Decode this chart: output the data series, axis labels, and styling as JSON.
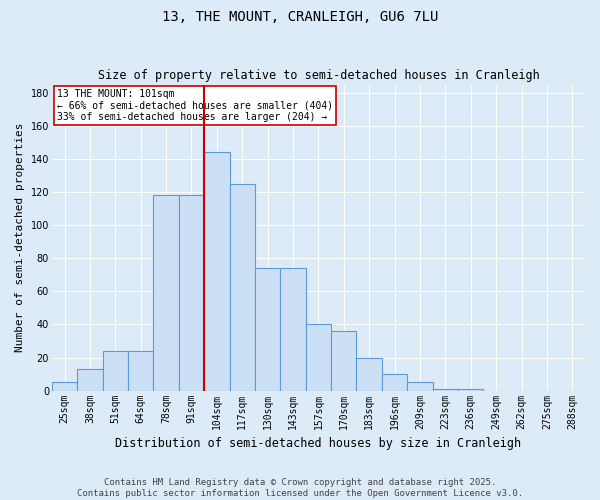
{
  "title": "13, THE MOUNT, CRANLEIGH, GU6 7LU",
  "subtitle": "Size of property relative to semi-detached houses in Cranleigh",
  "xlabel": "Distribution of semi-detached houses by size in Cranleigh",
  "ylabel": "Number of semi-detached properties",
  "categories": [
    "25sqm",
    "38sqm",
    "51sqm",
    "64sqm",
    "78sqm",
    "91sqm",
    "104sqm",
    "117sqm",
    "130sqm",
    "143sqm",
    "157sqm",
    "170sqm",
    "183sqm",
    "196sqm",
    "209sqm",
    "223sqm",
    "236sqm",
    "249sqm",
    "262sqm",
    "275sqm",
    "288sqm"
  ],
  "values": [
    5,
    13,
    24,
    24,
    118,
    118,
    144,
    125,
    74,
    74,
    40,
    36,
    20,
    10,
    5,
    1,
    1,
    0,
    0,
    0,
    0
  ],
  "bar_color": "#cce0f5",
  "bar_edge_color": "#5b9bd5",
  "vline_x": 5.5,
  "vline_color": "#cc0000",
  "annotation_lines": [
    "13 THE MOUNT: 101sqm",
    "← 66% of semi-detached houses are smaller (404)",
    "33% of semi-detached houses are larger (204) →"
  ],
  "annotation_box_color": "#ffffff",
  "annotation_box_edge": "#cc0000",
  "ylim": [
    0,
    185
  ],
  "yticks": [
    0,
    20,
    40,
    60,
    80,
    100,
    120,
    140,
    160,
    180
  ],
  "footnote": "Contains HM Land Registry data © Crown copyright and database right 2025.\nContains public sector information licensed under the Open Government Licence v3.0.",
  "bg_color": "#ddeaf7",
  "grid_color": "#ffffff",
  "title_fontsize": 10,
  "subtitle_fontsize": 8.5,
  "xlabel_fontsize": 8.5,
  "ylabel_fontsize": 8,
  "footnote_fontsize": 6.5,
  "tick_fontsize": 7
}
